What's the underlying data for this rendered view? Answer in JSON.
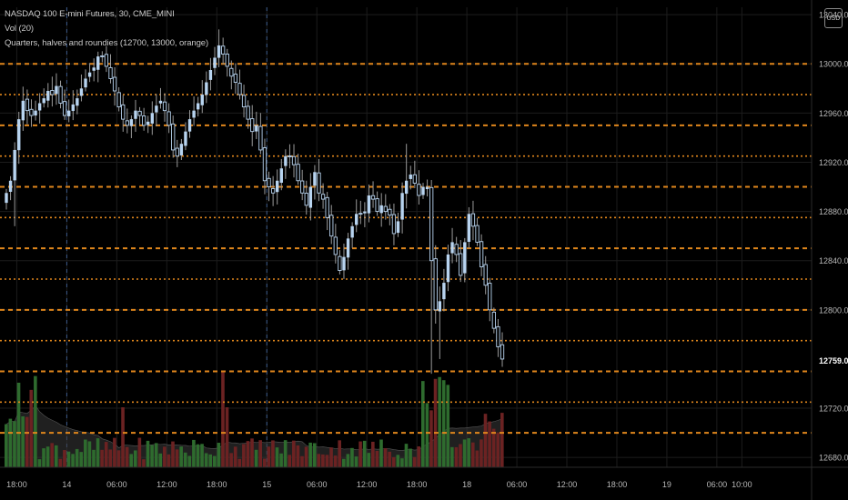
{
  "legend": {
    "symbol_line": "NASDAQ 100 E-mini Futures, 30, CME_MINI",
    "vol_line": "Vol (20)",
    "indicator_line": "Quarters, halves and roundies (12700, 13000, orange)"
  },
  "currency": "USD",
  "colors": {
    "background": "#000000",
    "grid": "#1c1c1c",
    "candle": "#b8d4f0",
    "wick": "#9a9a9a",
    "level_line": "#e0861c",
    "volume_up": "#2e6b2e",
    "volume_down": "#6b2222",
    "volume_ma_area": "#3a3a3a",
    "axis_text": "#b8b8b8",
    "last_price_text": "#ffffff",
    "session_separator": "#3c5a8a"
  },
  "chart_data": {
    "type": "candlestick",
    "title": "NASDAQ 100 E-mini Futures, 30, CME_MINI",
    "interval": "30",
    "xlabel": "",
    "ylabel": "",
    "ylim": [
      12672,
      13046
    ],
    "y_ticks": [
      {
        "value": 13040,
        "label": "13040.00"
      },
      {
        "value": 13000,
        "label": "13000.00"
      },
      {
        "value": 12960,
        "label": "12960.00"
      },
      {
        "value": 12920,
        "label": "12920.00"
      },
      {
        "value": 12880,
        "label": "12880.00"
      },
      {
        "value": 12840,
        "label": "12840.00"
      },
      {
        "value": 12800,
        "label": "12800.00"
      },
      {
        "value": 12720,
        "label": "12720.00"
      },
      {
        "value": 12680,
        "label": "12680.00"
      }
    ],
    "last_price": {
      "value": 12759,
      "label": "12759.00"
    },
    "x_ticks": [
      {
        "bar": 2.5,
        "label": "18:00"
      },
      {
        "bar": 14.5,
        "label": "14"
      },
      {
        "bar": 26.5,
        "label": "06:00"
      },
      {
        "bar": 38.5,
        "label": "12:00"
      },
      {
        "bar": 50.5,
        "label": "18:00"
      },
      {
        "bar": 62.5,
        "label": "15"
      },
      {
        "bar": 74.5,
        "label": "06:00"
      },
      {
        "bar": 86.5,
        "label": "12:00"
      },
      {
        "bar": 98.5,
        "label": "18:00"
      },
      {
        "bar": 110.5,
        "label": "18"
      },
      {
        "bar": 122.5,
        "label": "06:00"
      },
      {
        "bar": 134.5,
        "label": "12:00"
      },
      {
        "bar": 146.5,
        "label": "18:00"
      },
      {
        "bar": 158.5,
        "label": "19"
      },
      {
        "bar": 170.5,
        "label": "06:00"
      },
      {
        "bar": 176.5,
        "label": "10:00"
      }
    ],
    "session_separators": [
      14.5,
      62.5
    ],
    "indicator_levels": [
      {
        "value": 13000,
        "style": "dashed"
      },
      {
        "value": 12975,
        "style": "dotted"
      },
      {
        "value": 12950,
        "style": "dashed"
      },
      {
        "value": 12925,
        "style": "dotted"
      },
      {
        "value": 12900,
        "style": "dashed"
      },
      {
        "value": 12875,
        "style": "dotted"
      },
      {
        "value": 12850,
        "style": "dashed"
      },
      {
        "value": 12825,
        "style": "dotted"
      },
      {
        "value": 12800,
        "style": "dashed"
      },
      {
        "value": 12775,
        "style": "dotted"
      },
      {
        "value": 12750,
        "style": "dashed"
      },
      {
        "value": 12725,
        "style": "dotted"
      },
      {
        "value": 12700,
        "style": "dashed"
      }
    ],
    "close": [
      12895,
      12905,
      12930,
      12955,
      12970,
      12962,
      12958,
      12962,
      12968,
      12972,
      12978,
      12975,
      12982,
      12968,
      12958,
      12962,
      12967,
      12972,
      12980,
      12988,
      12993,
      12997,
      13006,
      13006,
      12998,
      12988,
      12978,
      12965,
      12955,
      12950,
      12955,
      12962,
      12958,
      12950,
      12953,
      12960,
      12966,
      12970,
      12962,
      12950,
      12930,
      12925,
      12935,
      12945,
      12955,
      12962,
      12968,
      12975,
      12985,
      12995,
      13005,
      13015,
      13008,
      12998,
      12990,
      12985,
      12975,
      12965,
      12955,
      12945,
      12950,
      12930,
      12905,
      12900,
      12895,
      12905,
      12915,
      12925,
      12925,
      12918,
      12905,
      12895,
      12885,
      12900,
      12912,
      12895,
      12890,
      12875,
      12860,
      12845,
      12832,
      12843,
      12858,
      12868,
      12878,
      12878,
      12880,
      12893,
      12890,
      12880,
      12885,
      12880,
      12877,
      12862,
      12872,
      12895,
      12905,
      12910,
      12903,
      12893,
      12900,
      12900,
      12840,
      12800,
      12807,
      12822,
      12845,
      12855,
      12845,
      12828,
      12855,
      12878,
      12868,
      12855,
      12835,
      12820,
      12800,
      12785,
      12770,
      12760
    ]
  }
}
